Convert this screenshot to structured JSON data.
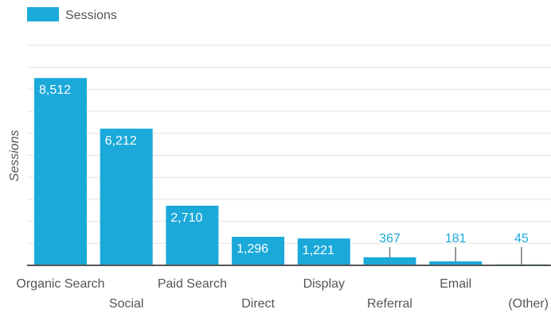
{
  "chart_data": {
    "type": "bar",
    "categories": [
      "Organic Search",
      "Social",
      "Paid Search",
      "Direct",
      "Display",
      "Referral",
      "Email",
      "(Other)"
    ],
    "series": [
      {
        "name": "Sessions",
        "values": [
          8512,
          6212,
          2710,
          1296,
          1221,
          367,
          181,
          45
        ],
        "labels": [
          "8,512",
          "6,212",
          "2,710",
          "1,296",
          "1,221",
          "367",
          "181",
          "45"
        ],
        "color": "#1ba9d9"
      }
    ],
    "xlabel": "",
    "ylabel": "Sessions",
    "ylim": [
      0,
      10000
    ],
    "legend": "top-left",
    "grid": true
  }
}
